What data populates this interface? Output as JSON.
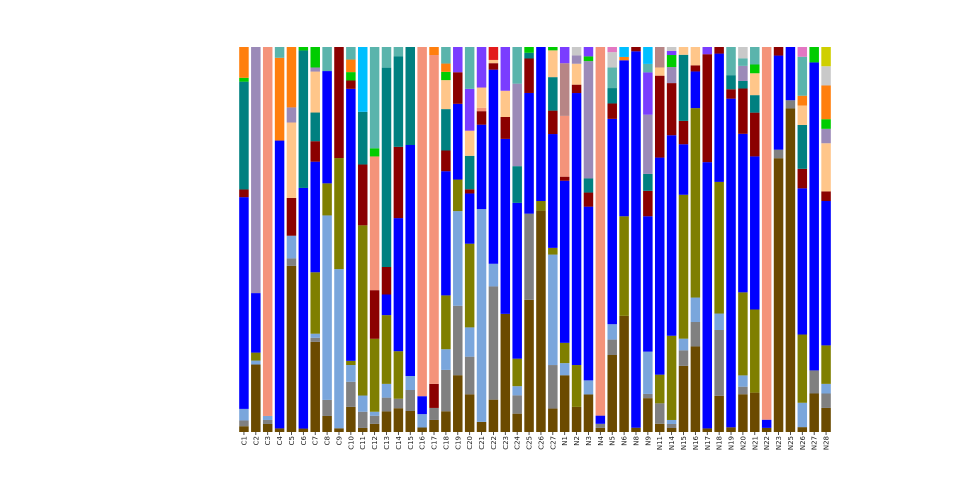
{
  "chart_data": {
    "type": "bar",
    "stacked": true,
    "normalized": true,
    "grid": false,
    "legend": "none",
    "ylim": [
      0,
      1
    ],
    "categories": [
      "C1",
      "C2",
      "C3",
      "C4",
      "C5",
      "C6",
      "C7",
      "C8",
      "C9",
      "C10",
      "C11",
      "C12",
      "C13",
      "C14",
      "C15",
      "C16",
      "C17",
      "C18",
      "C19",
      "C20",
      "C21",
      "C22",
      "C23",
      "C24",
      "C25",
      "C26",
      "C27",
      "N1",
      "N2",
      "N3",
      "N4",
      "N5",
      "N6",
      "N8",
      "N9",
      "N11",
      "N14",
      "N15",
      "N16",
      "N17",
      "N18",
      "N19",
      "N20",
      "N21",
      "N22",
      "N23",
      "N25",
      "N26",
      "N27",
      "N28"
    ],
    "palette": [
      "#6b4a00",
      "#808080",
      "#7aa6dc",
      "#7f7f00",
      "#0000ff",
      "#8b0000",
      "#008080",
      "#f4937a",
      "#ffc68a",
      "#9b8ab8",
      "#b78585",
      "#00cc00",
      "#7a3dff",
      "#ff7f0e",
      "#e31a1c",
      "#5ab4ac",
      "#c9c9c9",
      "#00bfff",
      "#e377c2",
      "#cfcf00"
    ],
    "series_values": [
      [
        0.015,
        0.17,
        0.02,
        0.01,
        0.22,
        0.01,
        0.22,
        0.02,
        0.01,
        0.06,
        0.01,
        0.02,
        0.03,
        0.05,
        0.03,
        0.01,
        0.03,
        0.05,
        0.09,
        0.09,
        0.03,
        0.1,
        0.27,
        0.02,
        0.23,
        0.46,
        0.07,
        0.14,
        0.06,
        0.08,
        0.01,
        0.15,
        0.35,
        0.01,
        0.08,
        0.02,
        0.01,
        0.17,
        0.14,
        0.01,
        0.11,
        0.01,
        0.1,
        0.09,
        0.01,
        0.64,
        0.79,
        0.01,
        0.05,
        0.05
      ],
      [
        0.015,
        0.0,
        0.01,
        0.0,
        0.01,
        0.0,
        0.01,
        0.02,
        0.0,
        0.06,
        0.04,
        0.02,
        0.02,
        0.02,
        0.03,
        0.0,
        0.03,
        0.1,
        0.11,
        0.09,
        0.0,
        0.35,
        0.0,
        0.02,
        0.15,
        0.0,
        0.13,
        0.0,
        0.0,
        0.0,
        0.01,
        0.03,
        0.0,
        0.0,
        0.01,
        0.05,
        0.01,
        0.04,
        0.04,
        0.0,
        0.2,
        0.0,
        0.02,
        0.0,
        0.0,
        0.02,
        0.02,
        0.0,
        0.03,
        0.03
      ],
      [
        0.03,
        0.01,
        0.01,
        0.0,
        0.03,
        0.0,
        0.01,
        0.23,
        0.43,
        0.04,
        0.04,
        0.01,
        0.02,
        0.0,
        0.02,
        0.03,
        0.0,
        0.05,
        0.15,
        0.07,
        0.63,
        0.07,
        0.0,
        0.01,
        0.0,
        0.0,
        0.33,
        0.03,
        0.0,
        0.03,
        0.0,
        0.03,
        0.0,
        0.0,
        0.1,
        0.0,
        0.01,
        0.03,
        0.04,
        0.0,
        0.05,
        0.0,
        0.03,
        0.0,
        0.0,
        0.0,
        0.0,
        0.05,
        0.0,
        0.02
      ],
      [
        0.0,
        0.02,
        0.0,
        0.0,
        0.0,
        0.0,
        0.15,
        0.04,
        0.3,
        0.01,
        0.42,
        0.18,
        0.1,
        0.1,
        0.0,
        0.0,
        0.0,
        0.13,
        0.05,
        0.2,
        0.0,
        0.0,
        0.0,
        0.03,
        0.0,
        0.02,
        0.02,
        0.05,
        0.1,
        0.0,
        0.0,
        0.0,
        0.3,
        0.0,
        0.0,
        0.07,
        0.21,
        0.37,
        0.31,
        0.0,
        0.4,
        0.0,
        0.22,
        0.19,
        0.0,
        0.0,
        0.0,
        0.14,
        0.0,
        0.08
      ],
      [
        0.55,
        0.15,
        0.0,
        0.8,
        0.0,
        0.7,
        0.27,
        0.14,
        0.0,
        0.65,
        0.0,
        0.0,
        0.03,
        0.28,
        0.33,
        0.04,
        0.0,
        0.3,
        0.12,
        0.12,
        0.25,
        0.6,
        0.4,
        0.17,
        0.21,
        0.32,
        0.34,
        0.4,
        0.65,
        0.37,
        0.02,
        0.4,
        0.47,
        0.88,
        0.32,
        0.53,
        0.5,
        0.13,
        0.06,
        0.74,
        0.39,
        0.7,
        0.42,
        0.35,
        0.02,
        0.22,
        0.13,
        0.3,
        0.4,
        0.3
      ],
      [
        0.02,
        0.0,
        0.0,
        0.0,
        0.05,
        0.0,
        0.05,
        0.0,
        0.3,
        0.02,
        0.15,
        0.12,
        0.04,
        0.15,
        0.0,
        0.0,
        0.06,
        0.05,
        0.05,
        0.01,
        0.04,
        0.02,
        0.05,
        0.0,
        0.06,
        0.0,
        0.07,
        0.01,
        0.02,
        0.03,
        0.0,
        0.03,
        0.0,
        0.01,
        0.06,
        0.2,
        0.13,
        0.06,
        0.01,
        0.3,
        0.02,
        0.02,
        0.12,
        0.1,
        0.0,
        0.02,
        0.0,
        0.04,
        0.0,
        0.02
      ],
      [
        0.28,
        0.0,
        0.0,
        0.0,
        0.0,
        0.4,
        0.07,
        0.0,
        0.0,
        0.0,
        0.13,
        0.0,
        0.29,
        0.19,
        0.14,
        0.0,
        0.0,
        0.1,
        0.0,
        0.08,
        0.0,
        0.0,
        0.0,
        0.04,
        0.01,
        0.0,
        0.1,
        0.0,
        0.0,
        0.03,
        0.0,
        0.03,
        0.0,
        0.0,
        0.04,
        0.0,
        0.0,
        0.17,
        0.0,
        0.0,
        0.0,
        0.03,
        0.02,
        0.04,
        0.0,
        0.0,
        0.0,
        0.09,
        0.0,
        0.0
      ],
      [
        0.0,
        0.0,
        0.92,
        0.0,
        0.0,
        0.0,
        0.0,
        0.0,
        0.0,
        0.0,
        0.0,
        0.33,
        0.0,
        0.0,
        0.0,
        0.78,
        0.82,
        0.0,
        0.0,
        0.0,
        0.01,
        0.0,
        0.0,
        0.0,
        0.0,
        0.0,
        0.0,
        0.15,
        0.0,
        0.0,
        0.9,
        0.0,
        0.0,
        0.0,
        0.0,
        0.0,
        0.0,
        0.0,
        0.0,
        0.0,
        0.0,
        0.0,
        0.0,
        0.0,
        0.91,
        0.0,
        0.0,
        0.0,
        0.0,
        0.0
      ],
      [
        0.0,
        0.0,
        0.0,
        0.0,
        0.1,
        0.0,
        0.1,
        0.0,
        0.0,
        0.0,
        0.0,
        0.0,
        0.0,
        0.0,
        0.0,
        0.0,
        0.0,
        0.07,
        0.0,
        0.06,
        0.06,
        0.01,
        0.06,
        0.0,
        0.0,
        0.0,
        0.08,
        0.0,
        0.05,
        0.0,
        0.0,
        0.0,
        0.0,
        0.0,
        0.0,
        0.02,
        0.0,
        0.02,
        0.03,
        0.0,
        0.0,
        0.0,
        0.0,
        0.05,
        0.0,
        0.0,
        0.0,
        0.04,
        0.0,
        0.1
      ],
      [
        0.0,
        0.62,
        0.0,
        0.0,
        0.02,
        0.0,
        0.01,
        0.0,
        0.0,
        0.0,
        0.0,
        0.0,
        0.0,
        0.0,
        0.0,
        0.0,
        0.0,
        0.0,
        0.0,
        0.0,
        0.0,
        0.0,
        0.0,
        0.09,
        0.0,
        0.0,
        0.0,
        0.0,
        0.02,
        0.25,
        0.0,
        0.0,
        0.0,
        0.0,
        0.14,
        0.0,
        0.04,
        0.0,
        0.0,
        0.0,
        0.0,
        0.0,
        0.04,
        0.0,
        0.0,
        0.0,
        0.0,
        0.0,
        0.0,
        0.03
      ],
      [
        0.0,
        0.0,
        0.0,
        0.0,
        0.0,
        0.0,
        0.0,
        0.0,
        0.0,
        0.0,
        0.0,
        0.0,
        0.0,
        0.0,
        0.0,
        0.0,
        0.0,
        0.0,
        0.0,
        0.0,
        0.0,
        0.0,
        0.0,
        0.0,
        0.0,
        0.0,
        0.0,
        0.13,
        0.0,
        0.0,
        0.0,
        0.0,
        0.0,
        0.0,
        0.0,
        0.05,
        0.0,
        0.0,
        0.0,
        0.0,
        0.0,
        0.0,
        0.0,
        0.0,
        0.0,
        0.0,
        0.0,
        0.0,
        0.0,
        0.0
      ],
      [
        0.01,
        0.0,
        0.0,
        0.0,
        0.0,
        0.01,
        0.05,
        0.0,
        0.0,
        0.02,
        0.0,
        0.02,
        0.0,
        0.0,
        0.0,
        0.0,
        0.0,
        0.02,
        0.0,
        0.0,
        0.0,
        0.0,
        0.0,
        0.0,
        0.01,
        0.0,
        0.01,
        0.0,
        0.0,
        0.01,
        0.0,
        0.0,
        0.0,
        0.0,
        0.0,
        0.0,
        0.03,
        0.0,
        0.0,
        0.0,
        0.0,
        0.0,
        0.0,
        0.02,
        0.0,
        0.0,
        0.0,
        0.0,
        0.02,
        0.02
      ],
      [
        0.0,
        0.0,
        0.0,
        0.0,
        0.0,
        0.0,
        0.0,
        0.0,
        0.0,
        0.0,
        0.0,
        0.0,
        0.0,
        0.0,
        0.0,
        0.0,
        0.0,
        0.0,
        0.04,
        0.1,
        0.12,
        0.0,
        0.1,
        0.0,
        0.0,
        0.0,
        0.0,
        0.04,
        0.0,
        0.02,
        0.0,
        0.0,
        0.0,
        0.0,
        0.1,
        0.0,
        0.01,
        0.0,
        0.0,
        0.02,
        0.0,
        0.0,
        0.0,
        0.0,
        0.0,
        0.0,
        0.0,
        0.0,
        0.0,
        0.0
      ],
      [
        0.08,
        0.0,
        0.0,
        0.23,
        0.08,
        0.0,
        0.0,
        0.0,
        0.0,
        0.03,
        0.0,
        0.0,
        0.0,
        0.0,
        0.0,
        0.0,
        0.02,
        0.02,
        0.0,
        0.0,
        0.0,
        0.0,
        0.0,
        0.0,
        0.0,
        0.0,
        0.0,
        0.0,
        0.0,
        0.0,
        0.0,
        0.0,
        0.01,
        0.0,
        0.0,
        0.0,
        0.0,
        0.0,
        0.0,
        0.0,
        0.0,
        0.0,
        0.0,
        0.0,
        0.0,
        0.0,
        0.0,
        0.02,
        0.0,
        0.07
      ],
      [
        0.0,
        0.0,
        0.0,
        0.0,
        0.0,
        0.0,
        0.0,
        0.0,
        0.0,
        0.0,
        0.0,
        0.0,
        0.0,
        0.0,
        0.0,
        0.0,
        0.0,
        0.0,
        0.0,
        0.0,
        0.0,
        0.04,
        0.0,
        0.0,
        0.0,
        0.0,
        0.0,
        0.0,
        0.0,
        0.0,
        0.0,
        0.0,
        0.0,
        0.0,
        0.0,
        0.0,
        0.0,
        0.0,
        0.0,
        0.0,
        0.0,
        0.0,
        0.0,
        0.0,
        0.0,
        0.0,
        0.0,
        0.0,
        0.0,
        0.0
      ],
      [
        0.0,
        0.0,
        0.0,
        0.03,
        0.0,
        0.0,
        0.0,
        0.03,
        0.0,
        0.03,
        0.0,
        0.25,
        0.03,
        0.02,
        0.0,
        0.0,
        0.0,
        0.04,
        0.0,
        0.1,
        0.0,
        0.0,
        0.0,
        0.04,
        0.0,
        0.0,
        0.0,
        0.0,
        0.0,
        0.0,
        0.0,
        0.04,
        0.0,
        0.0,
        0.02,
        0.0,
        0.0,
        0.0,
        0.0,
        0.0,
        0.0,
        0.06,
        0.02,
        0.04,
        0.0,
        0.0,
        0.0,
        0.08,
        0.0,
        0.0
      ],
      [
        0.0,
        0.0,
        0.0,
        0.0,
        0.0,
        0.0,
        0.0,
        0.0,
        0.0,
        0.0,
        0.0,
        0.0,
        0.0,
        0.0,
        0.0,
        0.0,
        0.0,
        0.0,
        0.0,
        0.0,
        0.0,
        0.0,
        0.0,
        0.0,
        0.0,
        0.0,
        0.0,
        0.0,
        0.02,
        0.0,
        0.0,
        0.03,
        0.0,
        0.0,
        0.0,
        0.0,
        0.01,
        0.0,
        0.0,
        0.0,
        0.0,
        0.0,
        0.03,
        0.0,
        0.0,
        0.0,
        0.0,
        0.0,
        0.0,
        0.04
      ],
      [
        0.0,
        0.0,
        0.0,
        0.0,
        0.0,
        0.0,
        0.0,
        0.0,
        0.0,
        0.0,
        0.16,
        0.0,
        0.0,
        0.0,
        0.0,
        0.0,
        0.0,
        0.0,
        0.0,
        0.0,
        0.0,
        0.0,
        0.0,
        0.0,
        0.0,
        0.0,
        0.0,
        0.0,
        0.0,
        0.0,
        0.0,
        0.0,
        0.03,
        0.0,
        0.04,
        0.0,
        0.0,
        0.0,
        0.0,
        0.0,
        0.0,
        0.0,
        0.0,
        0.0,
        0.0,
        0.0,
        0.0,
        0.0,
        0.0,
        0.0
      ],
      [
        0.0,
        0.0,
        0.0,
        0.0,
        0.0,
        0.0,
        0.0,
        0.0,
        0.0,
        0.0,
        0.0,
        0.0,
        0.0,
        0.0,
        0.0,
        0.0,
        0.0,
        0.0,
        0.0,
        0.0,
        0.0,
        0.0,
        0.0,
        0.0,
        0.0,
        0.0,
        0.0,
        0.0,
        0.0,
        0.0,
        0.0,
        0.01,
        0.0,
        0.0,
        0.0,
        0.0,
        0.0,
        0.0,
        0.0,
        0.0,
        0.0,
        0.0,
        0.0,
        0.0,
        0.0,
        0.0,
        0.0,
        0.02,
        0.0,
        0.0
      ],
      [
        0.0,
        0.0,
        0.0,
        0.0,
        0.0,
        0.0,
        0.0,
        0.0,
        0.0,
        0.0,
        0.0,
        0.0,
        0.0,
        0.0,
        0.0,
        0.0,
        0.0,
        0.0,
        0.0,
        0.0,
        0.0,
        0.0,
        0.0,
        0.0,
        0.0,
        0.0,
        0.0,
        0.0,
        0.0,
        0.0,
        0.0,
        0.0,
        0.0,
        0.0,
        0.0,
        0.0,
        0.0,
        0.0,
        0.0,
        0.0,
        0.0,
        0.0,
        0.0,
        0.0,
        0.0,
        0.0,
        0.0,
        0.0,
        0.0,
        0.04
      ]
    ]
  }
}
